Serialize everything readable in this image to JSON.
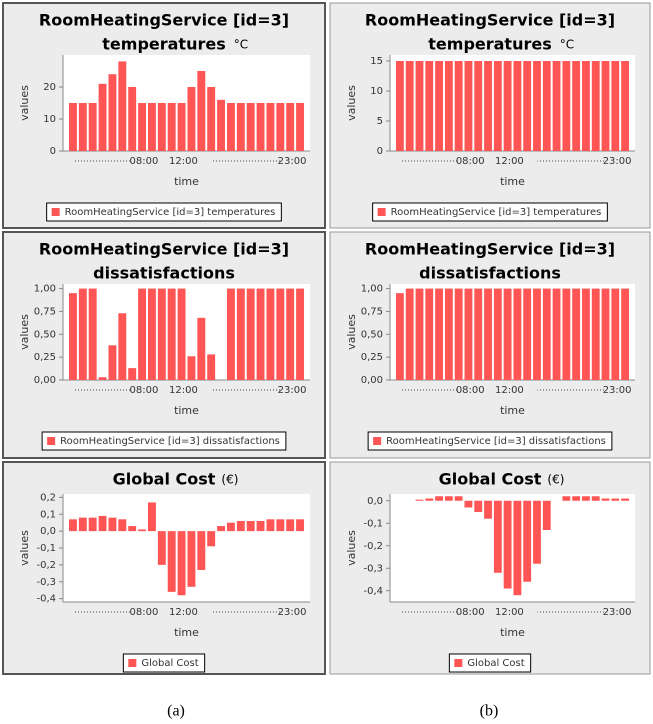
{
  "chart_data": [
    {
      "type": "bar",
      "title": "RoomHeatingService [id=3]",
      "subtitle": "temperatures",
      "unit": "°C",
      "xlabel": "time",
      "ylabel": "values",
      "categories": [
        null,
        null,
        null,
        null,
        null,
        null,
        null,
        null,
        "08:00",
        null,
        null,
        null,
        "12:00",
        null,
        null,
        null,
        null,
        null,
        null,
        null,
        null,
        null,
        null,
        "23:00"
      ],
      "series": [
        {
          "name": "RoomHeatingService [id=3] temperatures",
          "color": "#ff5555",
          "values": [
            15,
            15,
            15,
            21,
            24,
            28,
            20,
            15,
            15,
            15,
            15,
            15,
            20,
            25,
            20,
            16,
            15,
            15,
            15,
            15,
            15,
            15,
            15,
            15
          ]
        }
      ],
      "ylim": [
        0,
        30
      ],
      "yticks": [
        0,
        10,
        20
      ]
    },
    {
      "type": "bar",
      "title": "RoomHeatingService [id=3]",
      "subtitle": "temperatures",
      "unit": "°C",
      "xlabel": "time",
      "ylabel": "values",
      "categories": [
        null,
        null,
        null,
        null,
        null,
        null,
        null,
        null,
        "08:00",
        null,
        null,
        null,
        "12:00",
        null,
        null,
        null,
        null,
        null,
        null,
        null,
        null,
        null,
        null,
        "23:00"
      ],
      "series": [
        {
          "name": "RoomHeatingService [id=3] temperatures",
          "color": "#ff5555",
          "values": [
            15,
            15,
            15,
            15,
            15,
            15,
            15,
            15,
            15,
            15,
            15,
            15,
            15,
            15,
            15,
            15,
            15,
            15,
            15,
            15,
            15,
            15,
            15,
            15
          ]
        }
      ],
      "ylim": [
        0,
        16
      ],
      "yticks": [
        0,
        5,
        10,
        15
      ]
    },
    {
      "type": "bar",
      "title": "RoomHeatingService [id=3]",
      "subtitle": "dissatisfactions",
      "xlabel": "time",
      "ylabel": "values",
      "categories": [
        null,
        null,
        null,
        null,
        null,
        null,
        null,
        null,
        "08:00",
        null,
        null,
        null,
        "12:00",
        null,
        null,
        null,
        null,
        null,
        null,
        null,
        null,
        null,
        null,
        "23:00"
      ],
      "series": [
        {
          "name": "RoomHeatingService [id=3] dissatisfactions",
          "color": "#ff5555",
          "values": [
            0.95,
            1,
            1,
            0.03,
            0.38,
            0.73,
            0.13,
            1,
            1,
            1,
            1,
            1,
            0.26,
            0.68,
            0.28,
            0,
            1,
            1,
            1,
            1,
            1,
            1,
            1,
            1
          ]
        }
      ],
      "ylim": [
        0,
        1.05
      ],
      "yticks": [
        {
          "value": 0,
          "label": "0,00"
        },
        {
          "value": 0.25,
          "label": "0,25"
        },
        {
          "value": 0.5,
          "label": "0,50"
        },
        {
          "value": 0.75,
          "label": "0,75"
        },
        {
          "value": 1,
          "label": "1,00"
        }
      ]
    },
    {
      "type": "bar",
      "title": "RoomHeatingService [id=3]",
      "subtitle": "dissatisfactions",
      "xlabel": "time",
      "ylabel": "values",
      "categories": [
        null,
        null,
        null,
        null,
        null,
        null,
        null,
        null,
        "08:00",
        null,
        null,
        null,
        "12:00",
        null,
        null,
        null,
        null,
        null,
        null,
        null,
        null,
        null,
        null,
        "23:00"
      ],
      "series": [
        {
          "name": "RoomHeatingService [id=3] dissatisfactions",
          "color": "#ff5555",
          "values": [
            0.95,
            1,
            1,
            1,
            1,
            1,
            1,
            1,
            1,
            1,
            1,
            1,
            1,
            1,
            1,
            1,
            1,
            1,
            1,
            1,
            1,
            1,
            1,
            1
          ]
        }
      ],
      "ylim": [
        0,
        1.05
      ],
      "yticks": [
        {
          "value": 0,
          "label": "0,00"
        },
        {
          "value": 0.25,
          "label": "0,25"
        },
        {
          "value": 0.5,
          "label": "0,50"
        },
        {
          "value": 0.75,
          "label": "0,75"
        },
        {
          "value": 1,
          "label": "1,00"
        }
      ]
    },
    {
      "type": "bar",
      "title": "Global Cost",
      "unit": "(€)",
      "xlabel": "time",
      "ylabel": "values",
      "categories": [
        null,
        null,
        null,
        null,
        null,
        null,
        null,
        null,
        "08:00",
        null,
        null,
        null,
        "12:00",
        null,
        null,
        null,
        null,
        null,
        null,
        null,
        null,
        null,
        null,
        "23:00"
      ],
      "series": [
        {
          "name": "Global Cost",
          "color": "#ff5555",
          "values": [
            0.07,
            0.08,
            0.08,
            0.09,
            0.08,
            0.07,
            0.03,
            0.01,
            0.17,
            -0.2,
            -0.36,
            -0.38,
            -0.33,
            -0.23,
            -0.09,
            0.03,
            0.05,
            0.06,
            0.06,
            0.06,
            0.07,
            0.07,
            0.07,
            0.07
          ]
        }
      ],
      "ylim": [
        -0.42,
        0.22
      ],
      "yticks": [
        {
          "value": -0.4,
          "label": "-0,4"
        },
        {
          "value": -0.3,
          "label": "-0,3"
        },
        {
          "value": -0.2,
          "label": "-0,2"
        },
        {
          "value": -0.1,
          "label": "-0,1"
        },
        {
          "value": 0,
          "label": "0,0"
        },
        {
          "value": 0.1,
          "label": "0,1"
        },
        {
          "value": 0.2,
          "label": "0,2"
        }
      ]
    },
    {
      "type": "bar",
      "title": "Global Cost",
      "unit": "(€)",
      "xlabel": "time",
      "ylabel": "values",
      "categories": [
        null,
        null,
        null,
        null,
        null,
        null,
        null,
        null,
        "08:00",
        null,
        null,
        null,
        "12:00",
        null,
        null,
        null,
        null,
        null,
        null,
        null,
        null,
        null,
        null,
        "23:00"
      ],
      "series": [
        {
          "name": "Global Cost",
          "color": "#ff5555",
          "values": [
            0,
            0,
            0.005,
            0.01,
            0.02,
            0.02,
            0.02,
            -0.03,
            -0.05,
            -0.08,
            -0.32,
            -0.39,
            -0.42,
            -0.36,
            -0.28,
            -0.13,
            0,
            0.02,
            0.02,
            0.02,
            0.02,
            0.01,
            0.01,
            0.01
          ]
        }
      ],
      "ylim": [
        -0.45,
        0.03
      ],
      "yticks": [
        {
          "value": -0.4,
          "label": "-0,4"
        },
        {
          "value": -0.3,
          "label": "-0,3"
        },
        {
          "value": -0.2,
          "label": "-0,2"
        },
        {
          "value": -0.1,
          "label": "-0,1"
        },
        {
          "value": 0,
          "label": "0,0"
        }
      ]
    }
  ],
  "captions": [
    "(a)",
    "(b)"
  ]
}
